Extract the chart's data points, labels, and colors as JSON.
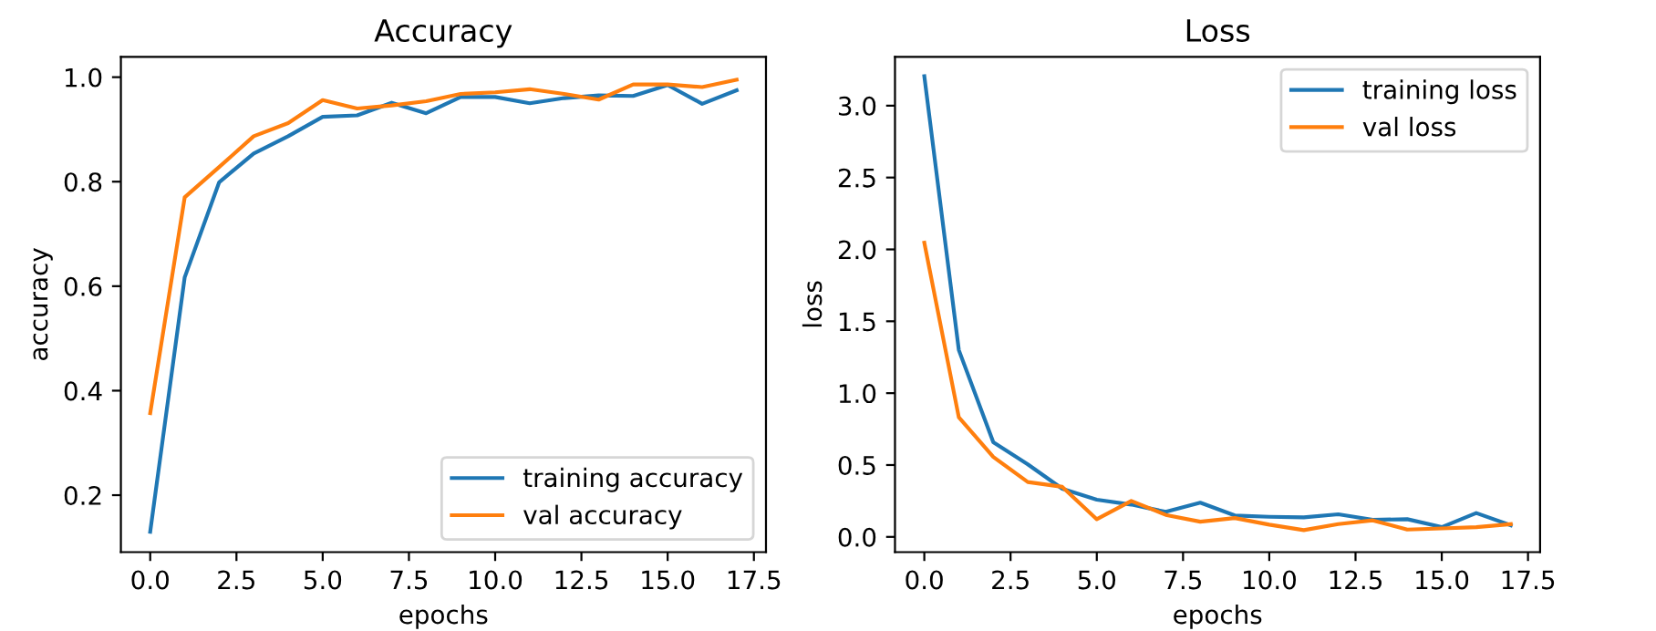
{
  "chart_data": [
    {
      "type": "line",
      "title": "Accuracy",
      "xlabel": "epochs",
      "ylabel": "accuracy",
      "x": [
        0,
        1,
        2,
        3,
        4,
        5,
        6,
        7,
        8,
        9,
        10,
        11,
        12,
        13,
        14,
        15,
        16,
        17
      ],
      "series": [
        {
          "name": "training accuracy",
          "color": "#1f77b4",
          "values": [
            0.13,
            0.617,
            0.799,
            0.854,
            0.887,
            0.924,
            0.927,
            0.951,
            0.931,
            0.962,
            0.962,
            0.95,
            0.96,
            0.965,
            0.964,
            0.985,
            0.949,
            0.975
          ]
        },
        {
          "name": "val accuracy",
          "color": "#ff7f0e",
          "values": [
            0.357,
            0.77,
            0.828,
            0.887,
            0.912,
            0.956,
            0.94,
            0.946,
            0.954,
            0.968,
            0.971,
            0.977,
            0.968,
            0.957,
            0.986,
            0.986,
            0.981,
            0.995
          ]
        }
      ],
      "xlim": [
        -0.85,
        17.85
      ],
      "ylim": [
        0.091,
        1.039
      ],
      "xticks": [
        {
          "value": 0,
          "label": "0.0"
        },
        {
          "value": 2.5,
          "label": "2.5"
        },
        {
          "value": 5,
          "label": "5.0"
        },
        {
          "value": 7.5,
          "label": "7.5"
        },
        {
          "value": 10,
          "label": "10.0"
        },
        {
          "value": 12.5,
          "label": "12.5"
        },
        {
          "value": 15,
          "label": "15.0"
        },
        {
          "value": 17.5,
          "label": "17.5"
        }
      ],
      "yticks": [
        {
          "value": 0.2,
          "label": "0.2"
        },
        {
          "value": 0.4,
          "label": "0.4"
        },
        {
          "value": 0.6,
          "label": "0.6"
        },
        {
          "value": 0.8,
          "label": "0.8"
        },
        {
          "value": 1.0,
          "label": "1.0"
        }
      ],
      "legend": "bottom right",
      "grid": false
    },
    {
      "type": "line",
      "title": "Loss",
      "xlabel": "epochs",
      "ylabel": "loss",
      "x": [
        0,
        1,
        2,
        3,
        4,
        5,
        6,
        7,
        8,
        9,
        10,
        11,
        12,
        13,
        14,
        15,
        16,
        17
      ],
      "series": [
        {
          "name": "training loss",
          "color": "#1f77b4",
          "values": [
            3.205,
            1.3,
            0.658,
            0.505,
            0.335,
            0.259,
            0.225,
            0.174,
            0.238,
            0.149,
            0.14,
            0.136,
            0.157,
            0.119,
            0.123,
            0.068,
            0.166,
            0.081
          ]
        },
        {
          "name": "val loss",
          "color": "#ff7f0e",
          "values": [
            2.046,
            0.832,
            0.556,
            0.382,
            0.348,
            0.123,
            0.25,
            0.153,
            0.106,
            0.131,
            0.085,
            0.047,
            0.089,
            0.115,
            0.051,
            0.059,
            0.068,
            0.089
          ]
        }
      ],
      "xlim": [
        -0.85,
        17.85
      ],
      "ylim": [
        -0.106,
        3.34
      ],
      "xticks": [
        {
          "value": 0,
          "label": "0.0"
        },
        {
          "value": 2.5,
          "label": "2.5"
        },
        {
          "value": 5,
          "label": "5.0"
        },
        {
          "value": 7.5,
          "label": "7.5"
        },
        {
          "value": 10,
          "label": "10.0"
        },
        {
          "value": 12.5,
          "label": "12.5"
        },
        {
          "value": 15,
          "label": "15.0"
        },
        {
          "value": 17.5,
          "label": "17.5"
        }
      ],
      "yticks": [
        {
          "value": 0,
          "label": "0.0"
        },
        {
          "value": 0.5,
          "label": "0.5"
        },
        {
          "value": 1.0,
          "label": "1.0"
        },
        {
          "value": 1.5,
          "label": "1.5"
        },
        {
          "value": 2.0,
          "label": "2.0"
        },
        {
          "value": 2.5,
          "label": "2.5"
        },
        {
          "value": 3.0,
          "label": "3.0"
        }
      ],
      "legend": "top right",
      "grid": false
    }
  ]
}
